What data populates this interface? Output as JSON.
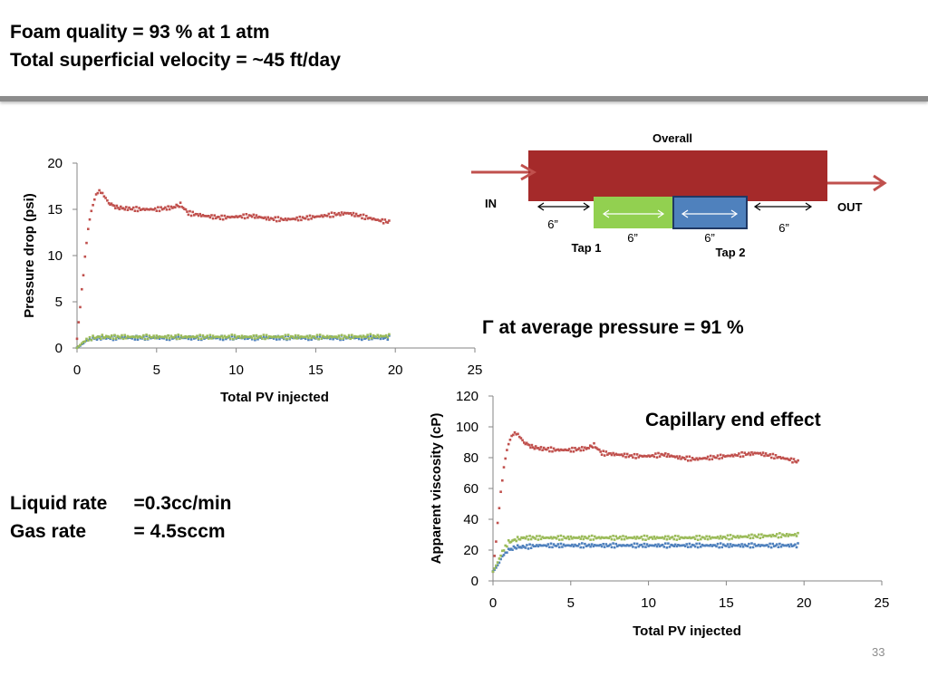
{
  "header": {
    "line1": "Foam quality = 93 % at 1 atm",
    "line2": "Total superficial velocity = ~45 ft/day"
  },
  "rates": {
    "liquid": "Liquid rate     =0.3cc/min",
    "gas": "Gas rate         = 4.5sccm"
  },
  "annotations": {
    "gamma": "Γ at average pressure = 91 %",
    "capillary": "Capillary end effect"
  },
  "schematic": {
    "overall": "Overall",
    "in": "IN",
    "out": "OUT",
    "tap1": "Tap 1",
    "tap2": "Tap 2",
    "len_left": "6”",
    "len_tap1": "6”",
    "len_tap2": "6”",
    "len_right": "6”",
    "colors": {
      "core": "#a52a2a",
      "tap1": "#92d050",
      "tap2": "#4f81bd",
      "arrow": "#c0504d"
    }
  },
  "page_number": "33",
  "chart_data": [
    {
      "type": "scatter",
      "title": "",
      "xlabel": "Total PV injected",
      "ylabel": "Pressure drop (psi)",
      "xlim": [
        0,
        25
      ],
      "ylim": [
        0,
        20
      ],
      "xticks": [
        "0",
        "5",
        "10",
        "15",
        "20",
        "25"
      ],
      "yticks": [
        "0",
        "5",
        "10",
        "15",
        "20"
      ],
      "grid": false,
      "series": [
        {
          "color": "#c0504d",
          "x": [
            0,
            0.2,
            0.4,
            0.6,
            0.8,
            1.0,
            1.2,
            1.4,
            1.6,
            2,
            2.5,
            3,
            4,
            5,
            6,
            6.5,
            7,
            8,
            9,
            10,
            11,
            12,
            13,
            14,
            15,
            16,
            17,
            18,
            19,
            19.7
          ],
          "y": [
            1,
            4.5,
            8,
            11.5,
            14,
            15.5,
            16.6,
            17,
            16.7,
            15.7,
            15.2,
            15.1,
            15,
            15,
            15.2,
            15.5,
            14.6,
            14.3,
            14.1,
            14.2,
            14.3,
            14,
            13.9,
            14,
            14.2,
            14.4,
            14.6,
            14.2,
            13.8,
            13.6
          ]
        },
        {
          "color": "#4f81bd",
          "x": [
            0,
            0.3,
            0.6,
            1,
            1.5,
            2,
            3,
            5,
            8,
            11,
            14,
            17,
            19.7
          ],
          "y": [
            0,
            0.4,
            0.8,
            1.0,
            1.1,
            1.1,
            1.1,
            1.1,
            1.1,
            1.1,
            1.1,
            1.1,
            1.1
          ]
        },
        {
          "color": "#9bbb59",
          "x": [
            0,
            0.3,
            0.6,
            1,
            1.5,
            2,
            3,
            5,
            8,
            11,
            14,
            17,
            19.7
          ],
          "y": [
            0,
            0.5,
            0.9,
            1.1,
            1.2,
            1.2,
            1.2,
            1.2,
            1.2,
            1.2,
            1.2,
            1.2,
            1.3
          ]
        }
      ]
    },
    {
      "type": "scatter",
      "title": "",
      "xlabel": "Total PV injected",
      "ylabel": "Apparent viscosity (cP)",
      "xlim": [
        0,
        25
      ],
      "ylim": [
        0,
        120
      ],
      "xticks": [
        "0",
        "5",
        "10",
        "15",
        "20",
        "25"
      ],
      "yticks": [
        "0",
        "20",
        "40",
        "60",
        "80",
        "100",
        "120"
      ],
      "grid": false,
      "series": [
        {
          "color": "#c0504d",
          "x": [
            0,
            0.2,
            0.4,
            0.6,
            0.8,
            1.0,
            1.2,
            1.4,
            1.6,
            2,
            2.5,
            3,
            4,
            5,
            6,
            6.5,
            7,
            8,
            9,
            10,
            11,
            12,
            13,
            14,
            15,
            16,
            17,
            18,
            19,
            19.7
          ],
          "y": [
            6,
            26,
            48,
            66,
            80,
            89,
            94,
            96,
            95,
            90,
            87,
            86,
            85,
            85,
            86,
            88,
            83,
            82,
            81,
            81,
            82,
            80,
            79,
            80,
            81,
            82,
            83,
            81,
            79,
            77
          ]
        },
        {
          "color": "#4f81bd",
          "x": [
            0,
            0.3,
            0.6,
            1,
            1.5,
            2,
            3,
            5,
            8,
            11,
            14,
            17,
            19.7
          ],
          "y": [
            6,
            10,
            16,
            20,
            22,
            22,
            23,
            23,
            23,
            23,
            23,
            23,
            23
          ]
        },
        {
          "color": "#9bbb59",
          "x": [
            0,
            0.3,
            0.6,
            1,
            1.5,
            2,
            3,
            5,
            8,
            11,
            14,
            17,
            19.7
          ],
          "y": [
            6,
            12,
            19,
            25,
            27,
            28,
            28,
            28,
            28,
            28,
            28,
            29,
            30
          ]
        }
      ]
    }
  ]
}
